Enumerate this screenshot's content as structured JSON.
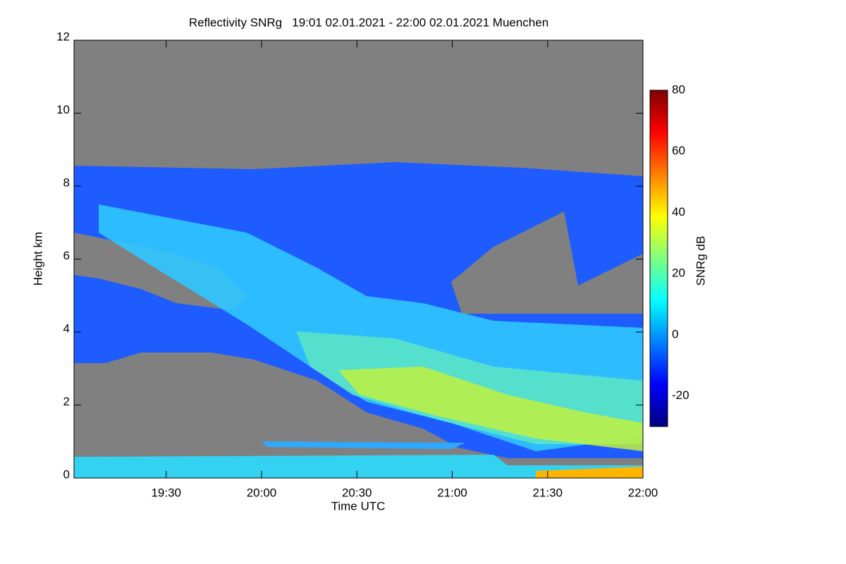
{
  "chart_data": {
    "type": "heatmap",
    "title": "Reflectivity SNRg   19:01 02.01.2021 - 22:00 02.01.2021 Muenchen",
    "x_label": "Time UTC",
    "y_label": "Height km",
    "xlim": [
      1141,
      1320
    ],
    "xticks": [
      {
        "value": 1170,
        "label": "19:30"
      },
      {
        "value": 1200,
        "label": "20:00"
      },
      {
        "value": 1230,
        "label": "20:30"
      },
      {
        "value": 1260,
        "label": "21:00"
      },
      {
        "value": 1290,
        "label": "21:30"
      },
      {
        "value": 1320,
        "label": "22:00"
      }
    ],
    "ylim": [
      0,
      12
    ],
    "yticks": [
      0,
      2,
      4,
      6,
      8,
      10,
      12
    ],
    "background": "#808080",
    "colorbar": {
      "label": "SNRg dB",
      "lim": [
        -30,
        80
      ],
      "ticks": [
        -20,
        0,
        20,
        40,
        60,
        80
      ],
      "colors": [
        "#00007f",
        "#0000ff",
        "#007fff",
        "#00ffff",
        "#7fff7f",
        "#ffff00",
        "#ff7f00",
        "#ff0000",
        "#7f0000"
      ]
    }
  }
}
